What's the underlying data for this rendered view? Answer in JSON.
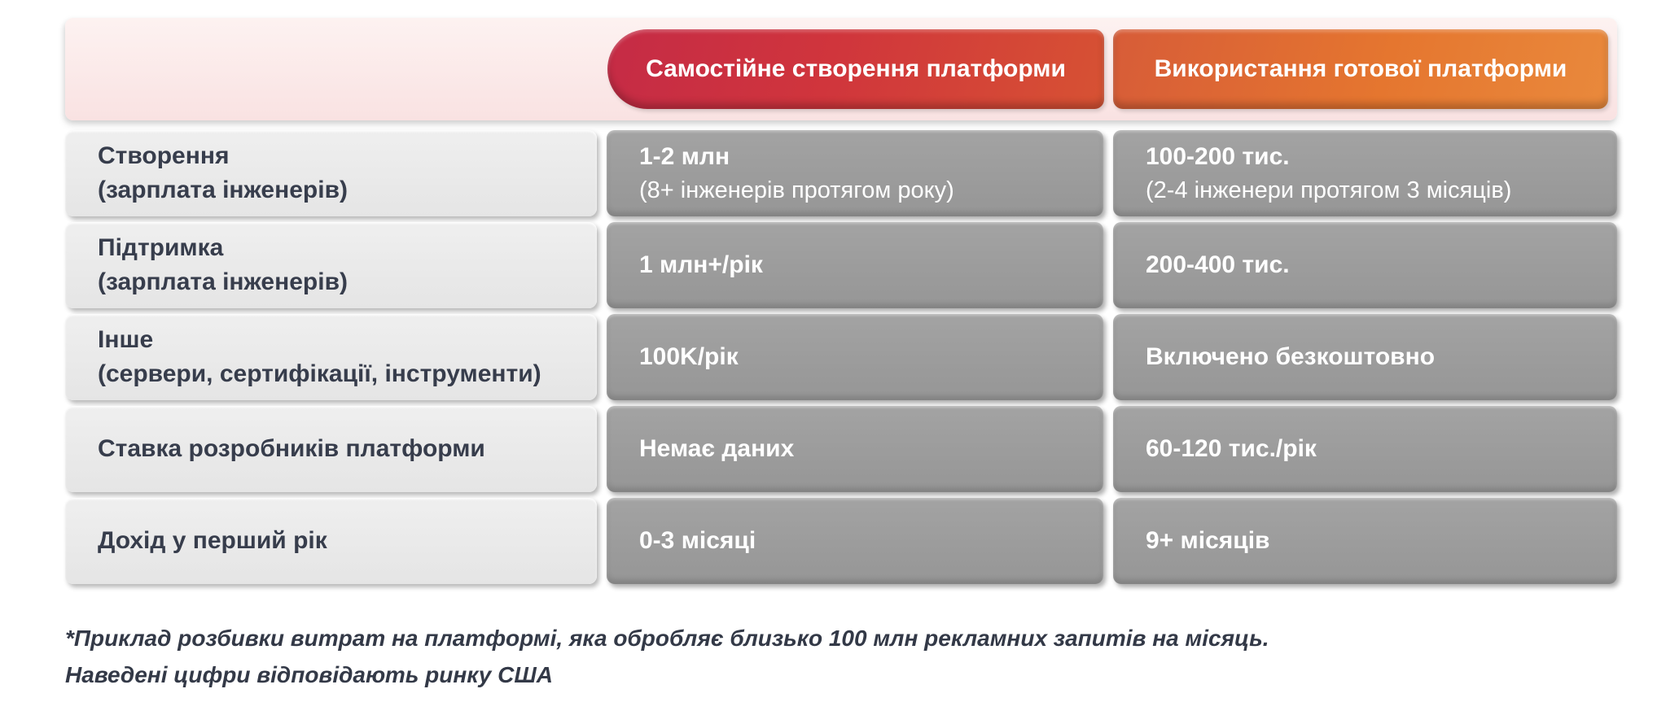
{
  "chart_data": {
    "type": "table",
    "title": "",
    "columns": [
      "",
      "Самостійне створення платформи",
      "Використання готової платформи"
    ],
    "rows": [
      [
        "Створення (зарплата інженерів)",
        "1-2 млн (8+ інженерів протягом року)",
        "100-200 тис. (2-4 інженери протягом 3 місяців)"
      ],
      [
        "Підтримка (зарплата інженерів)",
        "1 млн+/рік",
        "200-400 тис."
      ],
      [
        "Інше (сервери, сертифікації, інструменти)",
        "100K/рік",
        "Включено безкоштовно"
      ],
      [
        "Ставка розробників платформи",
        "Немає даних",
        "60-120 тис./рік"
      ],
      [
        "Дохід у перший рік",
        "0-3 місяці",
        "9+ місяців"
      ]
    ],
    "footnote": "*Приклад розбивки витрат на платформі, яка обробляє близько 100 млн рекламних запитів на місяць. Наведені цифри відповідають ринку США"
  },
  "table": {
    "header": {
      "col1": "Самостійне створення платформи",
      "col2": "Використання готової платформи"
    },
    "rows": [
      {
        "label": "Створення",
        "label_sub": "(зарплата інженерів)",
        "col1": "1-2 млн",
        "col1_sub": "(8+ інженерів протягом року)",
        "col2": "100-200 тис.",
        "col2_sub": "(2-4 інженери протягом 3 місяців)"
      },
      {
        "label": "Підтримка",
        "label_sub": "(зарплата інженерів)",
        "col1": "1 млн+/рік",
        "col1_sub": "",
        "col2": "200-400 тис.",
        "col2_sub": ""
      },
      {
        "label": "Інше",
        "label_sub": "(сервери, сертифікації, інструменти)",
        "col1": "100K/рік",
        "col1_sub": "",
        "col2": "Включено безкоштовно",
        "col2_sub": ""
      },
      {
        "label": "Ставка розробників платформи",
        "label_sub": "",
        "col1": "Немає даних",
        "col1_sub": "",
        "col2": "60-120 тис./рік",
        "col2_sub": ""
      },
      {
        "label": "Дохід у перший рік",
        "label_sub": "",
        "col1": "0-3 місяці",
        "col1_sub": "",
        "col2": "9+ місяців",
        "col2_sub": ""
      }
    ]
  },
  "footnote": {
    "line1": "*Приклад розбивки витрат на платформі, яка обробляє близько 100 млн рекламних запитів на місяць.",
    "line2": "Наведені цифри відповідають ринку США"
  },
  "colors": {
    "header_red": "#cf3640",
    "header_orange": "#e5762f",
    "header_strip_pink": "#f9e2e2",
    "label_cell_gray": "#e9e9e9",
    "data_cell_gray": "#9b9b9b",
    "text_dark": "#373d4c",
    "text_white": "#ffffff"
  }
}
